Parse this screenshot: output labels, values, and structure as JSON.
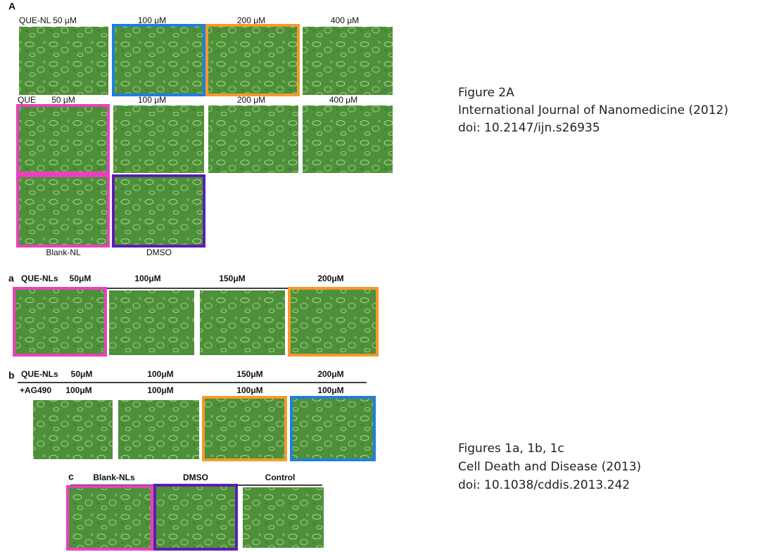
{
  "figure_2A": {
    "panel_label": "A",
    "row1_labels": [
      "QUE-NL 50 μM",
      "100 μM",
      "200 μM",
      "400 μM"
    ],
    "row2_labels": [
      "QUE",
      "50 μM",
      "100 μM",
      "200 μM",
      "400 μM"
    ],
    "row3_labels": [
      "Blank-NL",
      "DMSO"
    ]
  },
  "figure_1a": {
    "panel_label": "a",
    "labels": [
      "QUE-NLs",
      "50μM",
      "100μM",
      "150μM",
      "200μM"
    ]
  },
  "figure_1b": {
    "panel_label": "b",
    "row1_labels": [
      "QUE-NLs",
      "50μM",
      "100μM",
      "150μM",
      "200μM"
    ],
    "row2_labels": [
      "+AG490",
      "100μM",
      "100μM",
      "100μM",
      "100μM"
    ]
  },
  "figure_1c": {
    "panel_label": "c",
    "labels": [
      "Blank-NLs",
      "DMSO",
      "Control"
    ]
  },
  "citations": [
    {
      "lines": [
        "Figure 2A",
        "International Journal of Nanomedicine (2012)",
        "doi: 10.2147/ijn.s26935"
      ]
    },
    {
      "lines": [
        "Figures 1a, 1b, 1c",
        "Cell Death and Disease (2013)",
        "doi: 10.1038/cddis.2013.242"
      ]
    }
  ]
}
